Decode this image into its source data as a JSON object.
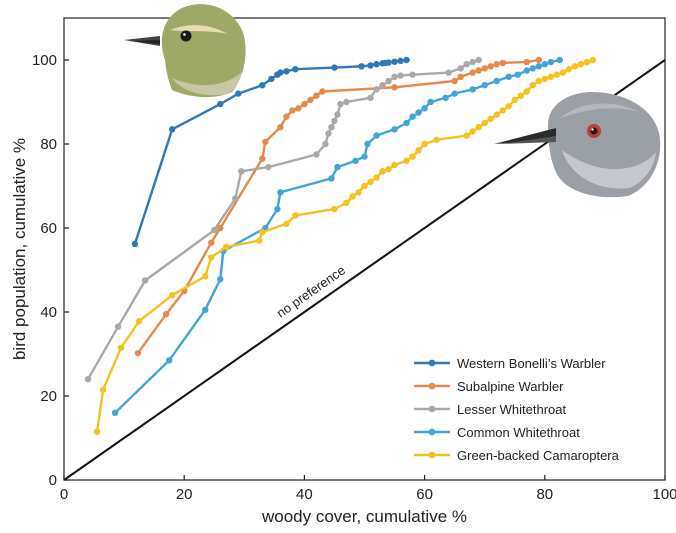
{
  "chart_data": {
    "type": "line",
    "xlabel": "woody cover, cumulative %",
    "ylabel": "bird population, cumulative %",
    "xlim": [
      0,
      100
    ],
    "ylim": [
      0,
      110
    ],
    "x_ticks": [
      0,
      20,
      40,
      60,
      80,
      100
    ],
    "y_ticks": [
      0,
      20,
      40,
      60,
      80,
      100
    ],
    "grid": false,
    "legend_position": "bottom-right",
    "annotation": "no preference",
    "reference_line": {
      "label": "no preference",
      "points": [
        [
          0,
          0
        ],
        [
          100,
          100
        ]
      ]
    },
    "illustrations": [
      "warbler-head",
      "camaroptera-head"
    ],
    "series": [
      {
        "name": "Western Bonelli’s Warbler",
        "color": "#2f78b8",
        "points": [
          [
            11.8,
            56.2
          ],
          [
            18,
            83.5
          ],
          [
            26,
            89.5
          ],
          [
            29,
            92
          ],
          [
            33,
            94
          ],
          [
            34.5,
            95.5
          ],
          [
            35.5,
            96.5
          ],
          [
            36,
            97
          ],
          [
            37,
            97.3
          ],
          [
            38.5,
            97.8
          ],
          [
            45,
            98.2
          ],
          [
            49.5,
            98.5
          ],
          [
            51,
            98.7
          ],
          [
            52,
            99
          ],
          [
            53,
            99.2
          ],
          [
            53.5,
            99.3
          ],
          [
            54,
            99.4
          ],
          [
            55,
            99.6
          ],
          [
            56,
            99.8
          ],
          [
            57,
            100
          ]
        ]
      },
      {
        "name": "Subalpine Warbler",
        "color": "#e6894a",
        "points": [
          [
            12.3,
            30.2
          ],
          [
            17,
            39.5
          ],
          [
            20,
            45
          ],
          [
            24.5,
            56.5
          ],
          [
            26,
            60
          ],
          [
            33,
            76.5
          ],
          [
            33.5,
            80.5
          ],
          [
            36,
            84
          ],
          [
            37,
            86.5
          ],
          [
            38,
            88
          ],
          [
            39,
            88.5
          ],
          [
            40,
            89.5
          ],
          [
            41,
            90.5
          ],
          [
            42,
            91.5
          ],
          [
            43,
            92.5
          ],
          [
            55,
            93.5
          ],
          [
            65,
            95
          ],
          [
            66,
            96
          ],
          [
            68,
            97
          ],
          [
            69,
            97.5
          ],
          [
            70,
            98
          ],
          [
            71,
            98.5
          ],
          [
            72,
            99
          ],
          [
            73,
            99.3
          ],
          [
            77,
            99.5
          ],
          [
            79,
            100
          ]
        ]
      },
      {
        "name": "Lesser Whitethroat",
        "color": "#a9a9a9",
        "points": [
          [
            4,
            24
          ],
          [
            9,
            36.5
          ],
          [
            13.5,
            47.5
          ],
          [
            25,
            59.5
          ],
          [
            28.5,
            67
          ],
          [
            29.5,
            73.5
          ],
          [
            34,
            74.5
          ],
          [
            42,
            77.5
          ],
          [
            43.5,
            80
          ],
          [
            44,
            82.5
          ],
          [
            44.5,
            84
          ],
          [
            45,
            85.5
          ],
          [
            45.5,
            87
          ],
          [
            46,
            89.5
          ],
          [
            47,
            90
          ],
          [
            51,
            91
          ],
          [
            52,
            93
          ],
          [
            53,
            94
          ],
          [
            54,
            95
          ],
          [
            55,
            96
          ],
          [
            56,
            96.3
          ],
          [
            58,
            96.5
          ],
          [
            64,
            97
          ],
          [
            66,
            98
          ],
          [
            67,
            99
          ],
          [
            68,
            99.5
          ],
          [
            69,
            100
          ]
        ]
      },
      {
        "name": "Common Whitethroat",
        "color": "#42a5d8",
        "points": [
          [
            8.5,
            16
          ],
          [
            17.5,
            28.5
          ],
          [
            23.5,
            40.5
          ],
          [
            26,
            47.8
          ],
          [
            26.5,
            54.5
          ],
          [
            33.5,
            60
          ],
          [
            35.5,
            64.5
          ],
          [
            36,
            68.5
          ],
          [
            44.5,
            71.8
          ],
          [
            45.5,
            74.5
          ],
          [
            48.5,
            76
          ],
          [
            50,
            77
          ],
          [
            50.5,
            80
          ],
          [
            52,
            82
          ],
          [
            55,
            83.5
          ],
          [
            57,
            85
          ],
          [
            58,
            86.5
          ],
          [
            59,
            87.5
          ],
          [
            60,
            88.5
          ],
          [
            61,
            90
          ],
          [
            63.5,
            91
          ],
          [
            65,
            92
          ],
          [
            68,
            93
          ],
          [
            70,
            94
          ],
          [
            72,
            95
          ],
          [
            74,
            96
          ],
          [
            75.5,
            96.5
          ],
          [
            77,
            97.5
          ],
          [
            78,
            98
          ],
          [
            79,
            98.5
          ],
          [
            80,
            99
          ],
          [
            81,
            99.5
          ],
          [
            82.5,
            100
          ]
        ]
      },
      {
        "name": "Green-backed Camaroptera",
        "color": "#f5c020",
        "points": [
          [
            5.5,
            11.5
          ],
          [
            6.5,
            21.5
          ],
          [
            9.5,
            31.5
          ],
          [
            12.5,
            37.8
          ],
          [
            18,
            44
          ],
          [
            23.5,
            48.5
          ],
          [
            24.5,
            53
          ],
          [
            27,
            55.5
          ],
          [
            32.5,
            57
          ],
          [
            33,
            59
          ],
          [
            37,
            61
          ],
          [
            38.5,
            63
          ],
          [
            45,
            64.5
          ],
          [
            47,
            66
          ],
          [
            48,
            67.5
          ],
          [
            49,
            68.5
          ],
          [
            50,
            70
          ],
          [
            51,
            71
          ],
          [
            52,
            72
          ],
          [
            53,
            73.5
          ],
          [
            54,
            74
          ],
          [
            55,
            75
          ],
          [
            57,
            76
          ],
          [
            58,
            77
          ],
          [
            59,
            78.5
          ],
          [
            60,
            80
          ],
          [
            62,
            81
          ],
          [
            67,
            82
          ],
          [
            68,
            83
          ],
          [
            69,
            84
          ],
          [
            70,
            85
          ],
          [
            71,
            86
          ],
          [
            72,
            87
          ],
          [
            73,
            88
          ],
          [
            74,
            89
          ],
          [
            75,
            90.5
          ],
          [
            76,
            91.5
          ],
          [
            77,
            92.5
          ],
          [
            78,
            94
          ],
          [
            79,
            95
          ],
          [
            80,
            95.5
          ],
          [
            81,
            96
          ],
          [
            82,
            96.5
          ],
          [
            83,
            97
          ],
          [
            84,
            97.8
          ],
          [
            85,
            98.5
          ],
          [
            86,
            99
          ],
          [
            87,
            99.5
          ],
          [
            88,
            100
          ]
        ]
      }
    ]
  }
}
